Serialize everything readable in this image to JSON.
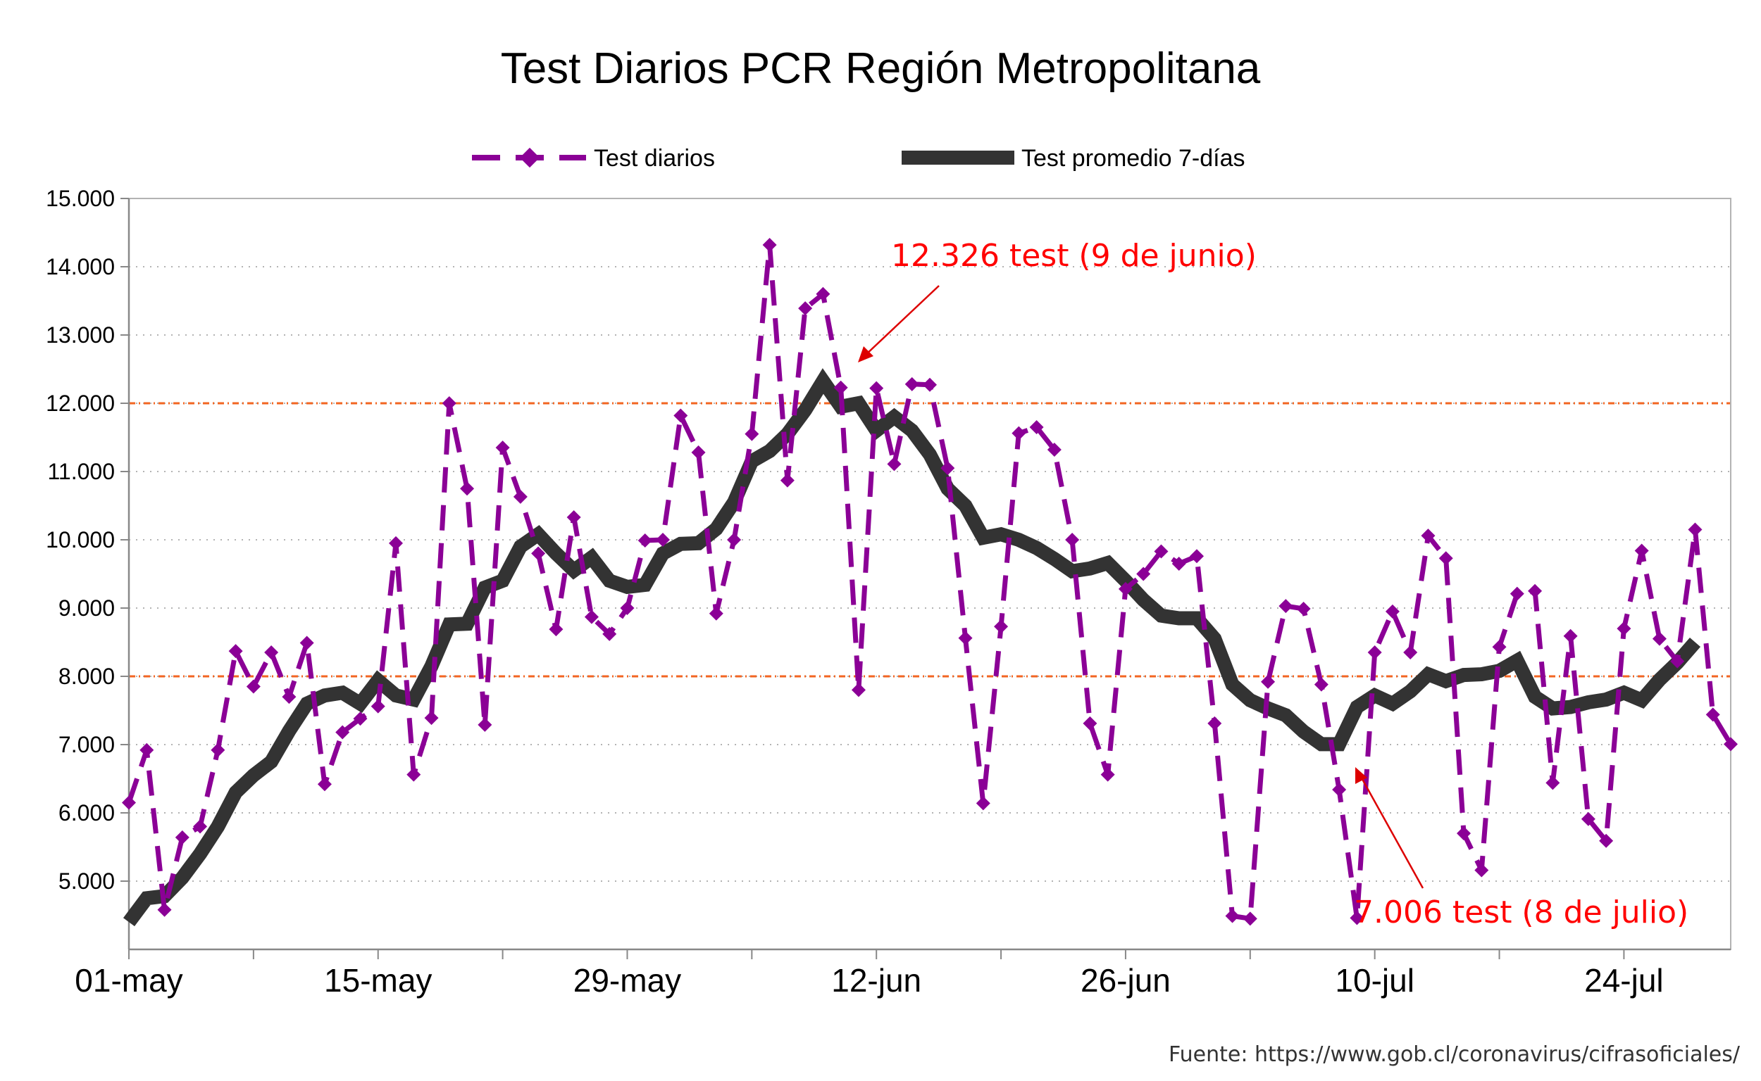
{
  "chart_data": {
    "type": "line",
    "title": "Test Diarios PCR Región Metropolitana",
    "xlabel": "",
    "ylabel": "",
    "ylim": [
      4000,
      15000
    ],
    "yticks": [
      5000,
      6000,
      7000,
      8000,
      9000,
      10000,
      11000,
      12000,
      13000,
      14000,
      15000
    ],
    "ytick_labels": [
      "5.000",
      "6.000",
      "7.000",
      "8.000",
      "9.000",
      "10.000",
      "11.000",
      "12.000",
      "13.000",
      "14.000",
      "15.000"
    ],
    "x_start": "2020-05-01",
    "x_end": "2020-07-30",
    "xtick_labels": [
      "01-may",
      "15-may",
      "29-may",
      "12-jun",
      "26-jun",
      "10-jul",
      "24-jul"
    ],
    "grid": true,
    "legend_position": "top",
    "reference_lines": [
      {
        "value": 12000,
        "color": "#f26522"
      },
      {
        "value": 8000,
        "color": "#f26522"
      }
    ],
    "series": [
      {
        "name": "Test diarios",
        "color": "#8b0096",
        "style": "dashed-diamond",
        "values": [
          6150,
          6920,
          4580,
          5640,
          5800,
          6920,
          8370,
          7850,
          8350,
          7700,
          8490,
          6420,
          7180,
          7380,
          7560,
          9950,
          6560,
          7390,
          12000,
          10750,
          7290,
          11350,
          10630,
          9800,
          8690,
          10330,
          8870,
          8620,
          9000,
          9990,
          10000,
          11820,
          11280,
          8920,
          10000,
          11550,
          14320,
          10870,
          13390,
          13600,
          12230,
          7800,
          12220,
          11110,
          12280,
          12270,
          11050,
          8560,
          6140,
          8730,
          11560,
          11650,
          11320,
          10000,
          7310,
          6560,
          9280,
          9500,
          9830,
          9650,
          9760,
          7310,
          4490,
          4450,
          7920,
          9030,
          8990,
          7880,
          6340,
          4460,
          8350,
          8950,
          8350,
          10060,
          9730,
          5700,
          5160,
          8430,
          9210,
          9250,
          6440,
          8590,
          5910,
          5590,
          8700,
          9840,
          8550,
          8220,
          10150,
          7440,
          7006
        ]
      },
      {
        "name": "Test promedio 7-días",
        "color": "#333333",
        "style": "thick",
        "values": [
          4400,
          4750,
          4780,
          5050,
          5400,
          5800,
          6300,
          6550,
          6750,
          7200,
          7600,
          7720,
          7760,
          7600,
          7940,
          7720,
          7660,
          8150,
          8760,
          8770,
          9300,
          9400,
          9900,
          10080,
          9800,
          9550,
          9740,
          9400,
          9310,
          9340,
          9800,
          9940,
          9950,
          10160,
          10550,
          11150,
          11300,
          11550,
          11900,
          12326,
          11950,
          12000,
          11600,
          11800,
          11600,
          11250,
          10750,
          10500,
          10030,
          10080,
          10000,
          9880,
          9720,
          9540,
          9580,
          9660,
          9400,
          9120,
          8890,
          8850,
          8850,
          8550,
          7880,
          7650,
          7530,
          7430,
          7190,
          7006,
          7006,
          7550,
          7720,
          7600,
          7780,
          8030,
          7930,
          8020,
          8030,
          8080,
          8230,
          7700,
          7530,
          7550,
          7620,
          7660,
          7760,
          7650,
          7950,
          8200,
          8500
        ]
      }
    ],
    "annotations": [
      {
        "text": "12.326 test (9 de junio)",
        "color": "#ff0000"
      },
      {
        "text": "7.006 test (8 de julio)",
        "color": "#ff0000"
      }
    ],
    "source": "Fuente: https://www.gob.cl/coronavirus/cifrasoficiales/"
  }
}
